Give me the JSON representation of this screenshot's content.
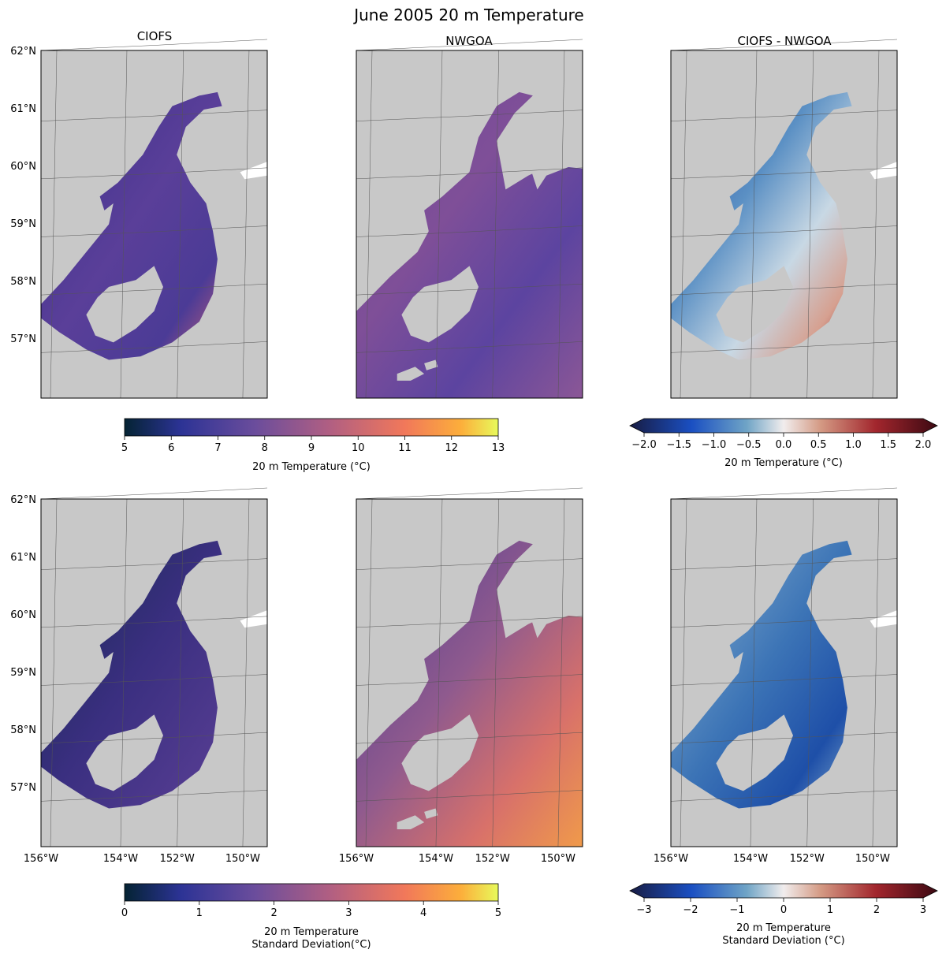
{
  "figure": {
    "title": "June 2005 20 m Temperature"
  },
  "columns": [
    {
      "title": "CIOFS"
    },
    {
      "title": "NWGOA"
    },
    {
      "title": "CIOFS - NWGOA"
    }
  ],
  "axes": {
    "lat_labels": [
      "62°N",
      "61°N",
      "60°N",
      "59°N",
      "58°N",
      "57°N"
    ],
    "lon_labels": [
      "156°W",
      "154°W",
      "152°W",
      "150°W"
    ],
    "lon_labels_right": [
      "156°W",
      "154°W",
      "152°W",
      "150°W"
    ]
  },
  "colorbars": {
    "temp": {
      "ticks": [
        "5",
        "6",
        "7",
        "8",
        "9",
        "10",
        "11",
        "12",
        "13"
      ],
      "label": "20 m Temperature (°C)"
    },
    "temp_diff": {
      "ticks": [
        "−2.0",
        "−1.5",
        "−1.0",
        "−0.5",
        "0.0",
        "0.5",
        "1.0",
        "1.5",
        "2.0"
      ],
      "label": "20 m Temperature (°C)"
    },
    "std": {
      "ticks": [
        "0",
        "1",
        "2",
        "3",
        "4",
        "5"
      ],
      "label_line1": "20 m Temperature",
      "label_line2": "Standard Deviation(°C)"
    },
    "std_diff": {
      "ticks": [
        "−3",
        "−2",
        "−1",
        "0",
        "1",
        "2",
        "3"
      ],
      "label_line1": "20 m Temperature",
      "label_line2": "Standard Deviation (°C)"
    }
  },
  "colors": {
    "land": "#c8c8c8",
    "seq_low": "#0d2b3a",
    "seq_mid": "#6a3f9c",
    "seq_high": "#e8f55a",
    "div_low": "#1a1a40",
    "div_mid": "#f2f2f2",
    "div_high": "#3a0010"
  }
}
